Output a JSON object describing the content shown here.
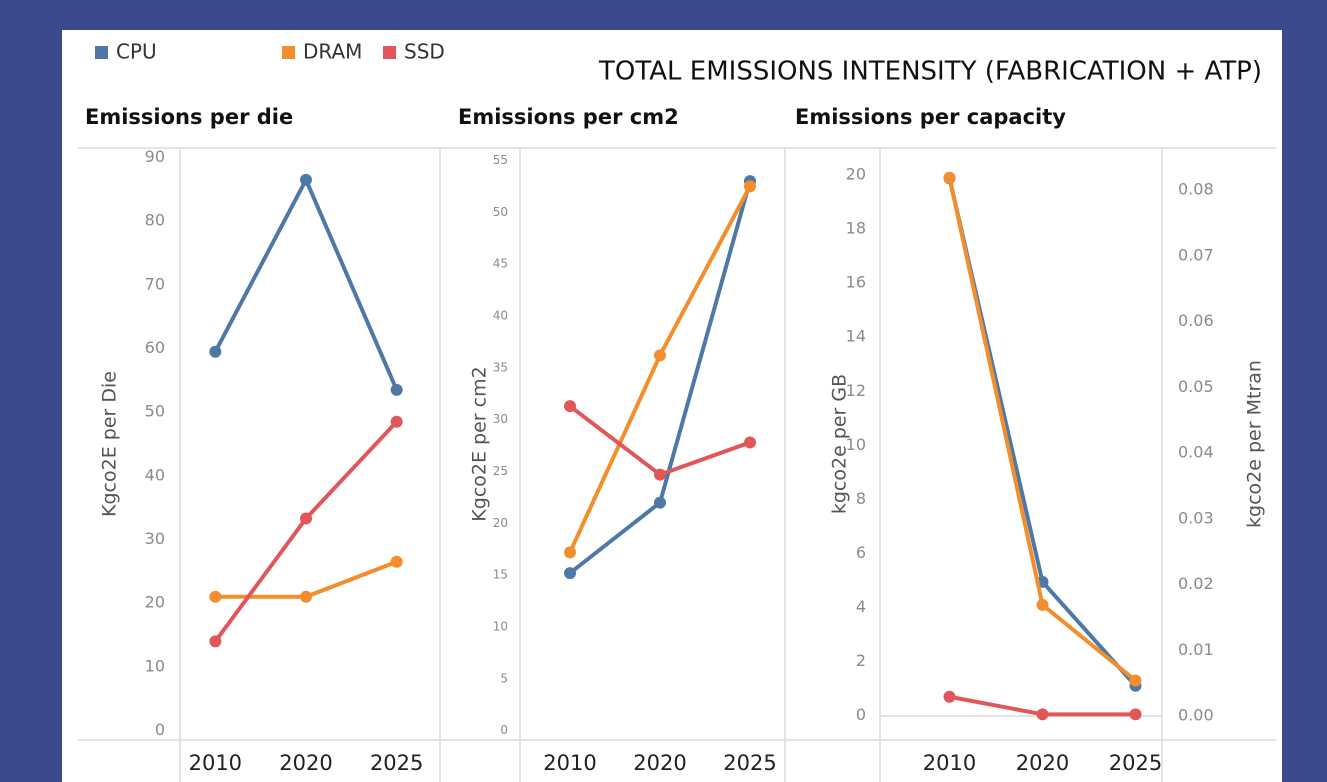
{
  "title": "TOTAL EMISSIONS INTENSITY (FABRICATION + ATP)",
  "chart_data": [
    {
      "type": "line",
      "title": "Emissions per die",
      "y_label": "Kgco2E per Die",
      "categories": [
        "2010",
        "2020",
        "2025"
      ],
      "series": [
        {
          "name": "CPU",
          "color": "#4e79a7",
          "values": [
            59.5,
            86.5,
            53.5
          ]
        },
        {
          "name": "DRAM",
          "color": "#f28e2b",
          "values": [
            21,
            21,
            26.5
          ]
        },
        {
          "name": "SSD",
          "color": "#e15759",
          "values": [
            14,
            33.3,
            48.5
          ]
        }
      ],
      "ylim": [
        -1.5,
        91.5
      ],
      "yticks": [
        0,
        10,
        20,
        30,
        40,
        50,
        60,
        70,
        80,
        90
      ]
    },
    {
      "type": "line",
      "title": "Emissions per cm2",
      "y_label": "Kgco2E per cm2",
      "categories": [
        "2010",
        "2020",
        "2025"
      ],
      "series": [
        {
          "name": "CPU",
          "color": "#4e79a7",
          "values": [
            15.2,
            22,
            53
          ]
        },
        {
          "name": "DRAM",
          "color": "#f28e2b",
          "values": [
            17.2,
            36.2,
            52.5
          ]
        },
        {
          "name": "SSD",
          "color": "#e15759",
          "values": [
            31.3,
            24.7,
            27.8
          ]
        }
      ],
      "ylim": [
        -0.9,
        56.2
      ],
      "yticks": [
        0,
        5,
        10,
        15,
        20,
        25,
        30,
        35,
        40,
        45,
        50,
        55
      ]
    },
    {
      "type": "line",
      "title": "Emissions per capacity",
      "y_label": "kgco2e per GB",
      "y2_label": "kgco2e per Mtran",
      "categories": [
        "2010",
        "2020",
        "2025"
      ],
      "series": [
        {
          "name": "CPU",
          "color": "#4e79a7",
          "axis": "y2",
          "values": [
            0.0818,
            0.0204,
            0.0046
          ]
        },
        {
          "name": "DRAM",
          "color": "#f28e2b",
          "values": [
            19.9,
            4.1,
            1.3
          ]
        },
        {
          "name": "SSD",
          "color": "#e15759",
          "values": [
            0.7,
            0.05,
            0.05
          ]
        }
      ],
      "ylim": [
        -0.9,
        21
      ],
      "yticks": [
        0,
        2,
        4,
        6,
        8,
        10,
        12,
        14,
        16,
        18,
        20
      ],
      "y2lim": [
        -0.00365,
        0.0864
      ],
      "y2ticks": [
        {
          "value": 0,
          "label": "0.00"
        },
        0.01,
        0.02,
        0.03,
        0.04,
        0.05,
        0.06,
        0.07,
        0.08
      ]
    }
  ]
}
